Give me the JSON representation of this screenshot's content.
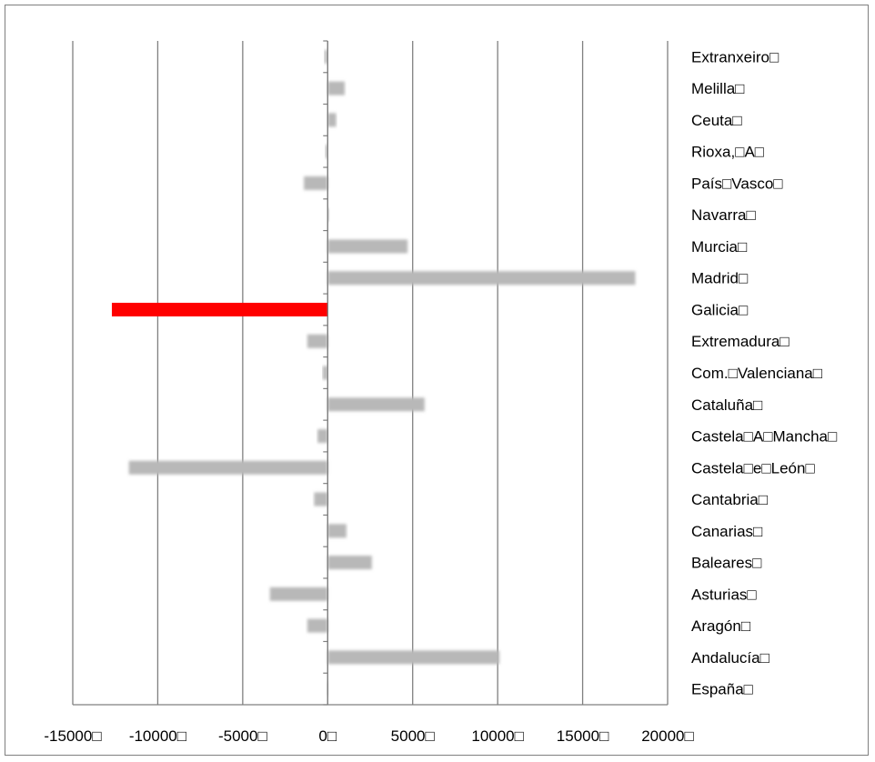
{
  "chart_data": {
    "type": "bar",
    "orientation": "horizontal",
    "categories": [
      "Extranxeiro",
      "Melilla",
      "Ceuta",
      "Rioxa, A",
      "País Vasco",
      "Navarra",
      "Murcia",
      "Madrid",
      "Galicia",
      "Extremadura",
      "Com. Valenciana",
      "Cataluña",
      "Castela A Mancha",
      "Castela e León",
      "Cantabria",
      "Canarias",
      "Baleares",
      "Asturias",
      "Aragón",
      "Andalucía",
      "España"
    ],
    "category_labels": [
      "Extranxeiro□",
      "Melilla□",
      "Ceuta□",
      "Rioxa,□A□",
      "País□Vasco□",
      "Navarra□",
      "Murcia□",
      "Madrid□",
      "Galicia□",
      "Extremadura□",
      "Com.□Valenciana□",
      "Cataluña□",
      "Castela□A□Mancha□",
      "Castela□e□León□",
      "Cantabria□",
      "Canarias□",
      "Baleares□",
      "Asturias□",
      "Aragón□",
      "Andalucía□",
      "España□"
    ],
    "values": [
      -200,
      1000,
      500,
      -150,
      -1400,
      100,
      4700,
      18100,
      -12700,
      -1200,
      -300,
      5700,
      -600,
      -11700,
      -800,
      1100,
      2600,
      -3400,
      -1200,
      10100,
      -50
    ],
    "highlight_category": "Galicia",
    "colors": {
      "bar": "#b8b8b8",
      "highlight": "#ff0000",
      "grid": "#808080"
    },
    "xlim": [
      -15000,
      20000
    ],
    "xticks": [
      -15000,
      -10000,
      -5000,
      0,
      5000,
      10000,
      15000,
      20000
    ],
    "xtick_labels": [
      "-15000□",
      "-10000□",
      "-5000□",
      "0□",
      "5000□",
      "10000□",
      "15000□",
      "20000□"
    ],
    "grid": true,
    "legend": "none",
    "title": "",
    "xlabel": "",
    "ylabel": ""
  }
}
